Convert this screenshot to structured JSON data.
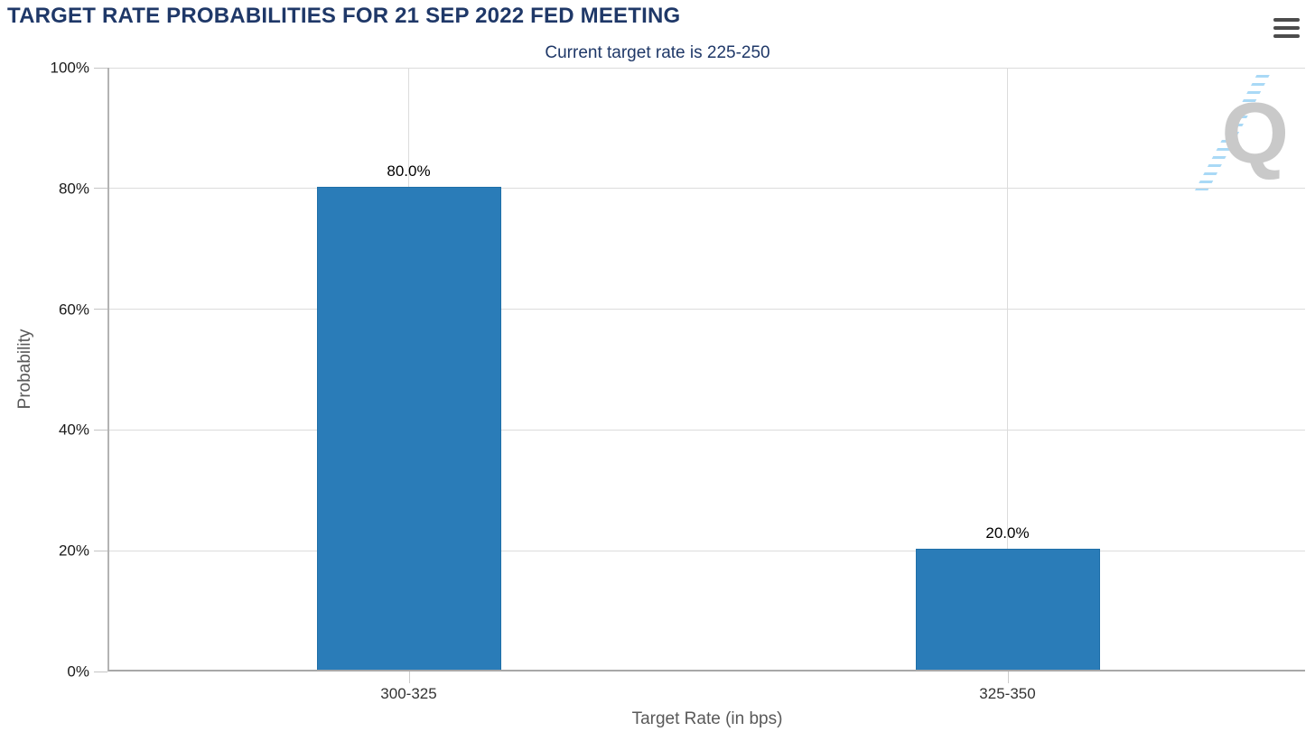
{
  "header": {
    "title": "TARGET RATE PROBABILITIES FOR 21 SEP 2022 FED MEETING",
    "menu_icon": "hamburger-icon"
  },
  "chart_data": {
    "type": "bar",
    "title": "TARGET RATE PROBABILITIES FOR 21 SEP 2022 FED MEETING",
    "subtitle": "Current target rate is 225-250",
    "categories": [
      "300-325",
      "325-350"
    ],
    "values": [
      80.0,
      20.0
    ],
    "value_labels": [
      "80.0%",
      "20.0%"
    ],
    "xlabel": "Target Rate (in bps)",
    "ylabel": "Probability",
    "ylim": [
      0,
      100
    ],
    "yticks": [
      0,
      20,
      40,
      60,
      80,
      100
    ],
    "ytick_labels": [
      "0%",
      "20%",
      "40%",
      "60%",
      "80%",
      "100%"
    ],
    "grid": true,
    "legend": "none",
    "bar_color": "#2a7cb8",
    "bar_border_color": "#1f6fa8"
  },
  "watermark": {
    "letter": "Q"
  },
  "colors": {
    "title_text": "#1f3868",
    "axis_title_text": "#595959",
    "tick_text": "#1a1a1a",
    "gridline": "#dcdcdc",
    "watermark_letter": "#c9c9c9",
    "watermark_dashes": "#a9d9f6"
  }
}
